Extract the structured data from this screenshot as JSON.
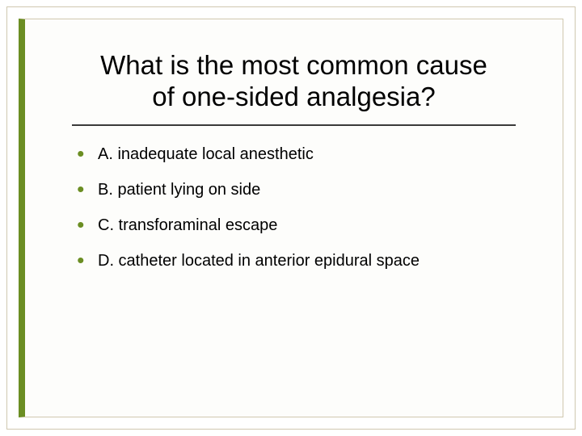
{
  "slide": {
    "title_line1": "What is the most common cause",
    "title_line2": "of one-sided analgesia?",
    "options": [
      "A. inadequate local anesthetic",
      "B. patient lying on side",
      "C. transforaminal escape",
      "D. catheter located in anterior epidural space"
    ],
    "accent_color": "#6b8e23",
    "frame_border_color": "#d0c8b0",
    "divider_color": "#3a3a3a",
    "background_color": "#ffffff",
    "title_fontsize": 33,
    "option_fontsize": 20,
    "bullet_color": "#6b8e23"
  }
}
